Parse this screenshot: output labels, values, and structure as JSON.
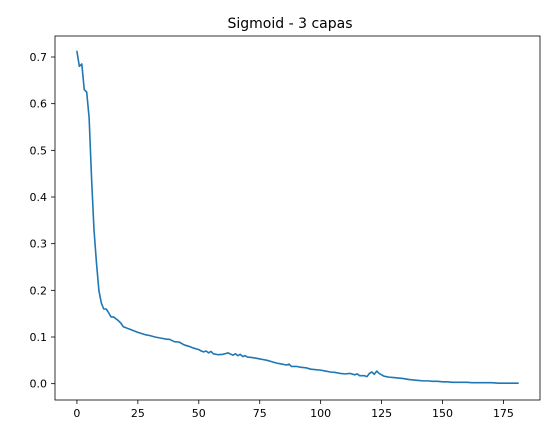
{
  "chart_data": {
    "type": "line",
    "title": "Sigmoid - 3 capas",
    "xlabel": "",
    "ylabel": "",
    "xlim": [
      -9,
      190
    ],
    "ylim": [
      -0.035,
      0.745
    ],
    "xticks": [
      0,
      25,
      50,
      75,
      100,
      125,
      150,
      175
    ],
    "yticks": [
      0.0,
      0.1,
      0.2,
      0.3,
      0.4,
      0.5,
      0.6,
      0.7
    ],
    "xtick_labels": [
      "0",
      "25",
      "50",
      "75",
      "100",
      "125",
      "150",
      "175"
    ],
    "ytick_labels": [
      "0.0",
      "0.1",
      "0.2",
      "0.3",
      "0.4",
      "0.5",
      "0.6",
      "0.7"
    ],
    "grid": false,
    "legend": false,
    "line_color": "#1f77b4",
    "series": [
      {
        "x": [
          0,
          1,
          2,
          3,
          4,
          5,
          6,
          7,
          8,
          9,
          10,
          11,
          12,
          13,
          14,
          15,
          16,
          17,
          18,
          19,
          20,
          22,
          25,
          28,
          30,
          32,
          35,
          37,
          38,
          40,
          42,
          44,
          46,
          48,
          50,
          51,
          52,
          53,
          54,
          55,
          56,
          58,
          60,
          62,
          64,
          65,
          66,
          67,
          68,
          69,
          70,
          72,
          74,
          75,
          76,
          78,
          80,
          82,
          84,
          86,
          87,
          88,
          90,
          92,
          94,
          96,
          98,
          100,
          102,
          104,
          106,
          108,
          110,
          112,
          114,
          115,
          116,
          118,
          119,
          120,
          121,
          122,
          123,
          124,
          125,
          126,
          128,
          130,
          132,
          134,
          136,
          138,
          140,
          142,
          144,
          146,
          148,
          150,
          152,
          154,
          156,
          158,
          160,
          162,
          165,
          168,
          170,
          173,
          175,
          178,
          181
        ],
        "y": [
          0.712,
          0.68,
          0.685,
          0.63,
          0.625,
          0.57,
          0.44,
          0.33,
          0.26,
          0.2,
          0.173,
          0.16,
          0.16,
          0.152,
          0.143,
          0.143,
          0.139,
          0.135,
          0.13,
          0.122,
          0.12,
          0.116,
          0.11,
          0.105,
          0.103,
          0.1,
          0.097,
          0.095,
          0.095,
          0.09,
          0.089,
          0.083,
          0.08,
          0.076,
          0.073,
          0.07,
          0.068,
          0.07,
          0.066,
          0.069,
          0.064,
          0.062,
          0.063,
          0.066,
          0.061,
          0.064,
          0.06,
          0.063,
          0.058,
          0.06,
          0.057,
          0.056,
          0.054,
          0.053,
          0.052,
          0.05,
          0.047,
          0.044,
          0.042,
          0.04,
          0.042,
          0.037,
          0.037,
          0.035,
          0.034,
          0.031,
          0.03,
          0.029,
          0.027,
          0.025,
          0.024,
          0.022,
          0.021,
          0.022,
          0.019,
          0.021,
          0.017,
          0.017,
          0.015,
          0.022,
          0.025,
          0.02,
          0.027,
          0.022,
          0.019,
          0.016,
          0.014,
          0.013,
          0.012,
          0.011,
          0.009,
          0.008,
          0.007,
          0.006,
          0.006,
          0.005,
          0.005,
          0.004,
          0.004,
          0.003,
          0.003,
          0.003,
          0.003,
          0.002,
          0.002,
          0.002,
          0.002,
          0.001,
          0.001,
          0.001,
          0.001
        ]
      }
    ]
  }
}
